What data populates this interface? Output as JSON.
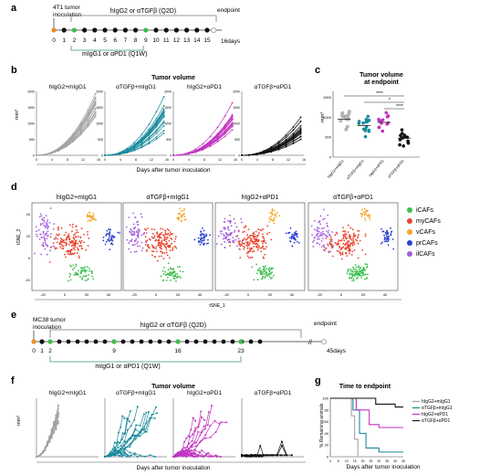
{
  "colors": {
    "grey": "#a3a3a3",
    "teal": "#1b8a9c",
    "magenta": "#c233c0",
    "black": "#111111",
    "orange": "#f08a24",
    "green": "#3dbf4e",
    "red": "#e8432c",
    "yellow": "#f6a524",
    "blue": "#2a3fd0",
    "purple": "#a35cde"
  },
  "panel_a": {
    "letter": "a",
    "inoculation": [
      "4T1 tumor",
      "inoculation"
    ],
    "bracket_label": "hIgG2 or αTGFβ (Q2D)",
    "dose_label": "mIgG1 or αPD1 (Q1W)",
    "endpoint": "endpoint",
    "days": [
      "0",
      "1",
      "2",
      "3",
      "4",
      "5",
      "6",
      "7",
      "8",
      "9",
      "10",
      "11",
      "12",
      "13",
      "14",
      "15"
    ],
    "end_day": "16days"
  },
  "panel_b": {
    "letter": "b",
    "title": "Tumor volume",
    "ylabel": "mm³",
    "xlabel": "Days after tumor inoculation",
    "groups": [
      "hIgG2+mIgG1",
      "αTGFβ+mIgG1",
      "hIgG2+αPD1",
      "αTGFβ+αPD1"
    ],
    "yticks": [
      "0",
      "500",
      "1000",
      "1500",
      "2000"
    ],
    "xticks": [
      "0",
      "4",
      "8",
      "12",
      "16"
    ]
  },
  "panel_c": {
    "letter": "c",
    "title": [
      "Tumor volume",
      "at endpoint"
    ],
    "ylabel": "mm³",
    "yticks": [
      "0",
      "500",
      "1000",
      "1500"
    ],
    "groups": [
      "hIgG2+mIgG1",
      "αTGFβ+mIgG1",
      "hIgG2+αPD1",
      "αTGFβ+αPD1"
    ],
    "sig": [
      "****",
      "*",
      "****"
    ]
  },
  "panel_d": {
    "letter": "d",
    "groups": [
      "hIgG2+mIgG1",
      "αTGFβ+mIgG1",
      "hIgG2+αPD1",
      "αTGFβ+αPD1"
    ],
    "xlabel": "tSNE_1",
    "ylabel": "tSNE_2",
    "xticks": [
      "-20",
      "0",
      "20",
      "40"
    ],
    "yticks": [
      "-20",
      "0",
      "20",
      "40"
    ],
    "legend": [
      "iCAFs",
      "myCAFs",
      "vCAFs",
      "prCAFs",
      "ilCAFs"
    ]
  },
  "panel_e": {
    "letter": "e",
    "inoculation": [
      "MC38 tumor",
      "inoculation"
    ],
    "bracket_label": "hIgG2 or αTGFβ (Q2D)",
    "dose_label": "mIgG1 or αPD1 (Q1W)",
    "endpoint": "endpoint",
    "days": [
      "0",
      "1",
      "2",
      "9",
      "16",
      "23"
    ],
    "end_day": "45days"
  },
  "panel_f": {
    "letter": "f",
    "title": "Tumor volume",
    "ylabel": "mm³",
    "xlabel": "Days after tumor inoculation",
    "groups": [
      "hIgG2+mIgG1",
      "αTGFβ+mIgG1",
      "hIgG2+αPD1",
      "αTGFβ+αPD1"
    ]
  },
  "panel_g": {
    "letter": "g",
    "title": "Time to endpoint",
    "ylabel": "% Remaining animals",
    "xlabel": "Days after tumor inoculation",
    "yticks": [
      "0",
      "20",
      "40",
      "60",
      "80",
      "100"
    ],
    "xticks": [
      "0",
      "5",
      "10",
      "15",
      "20",
      "25",
      "30",
      "35",
      "40",
      "45"
    ],
    "legend": [
      "hIgG2+mIgG1",
      "αTGFβ+mIgG1",
      "hIgG2+αPD1",
      "αTGFβ+αPD1"
    ]
  }
}
